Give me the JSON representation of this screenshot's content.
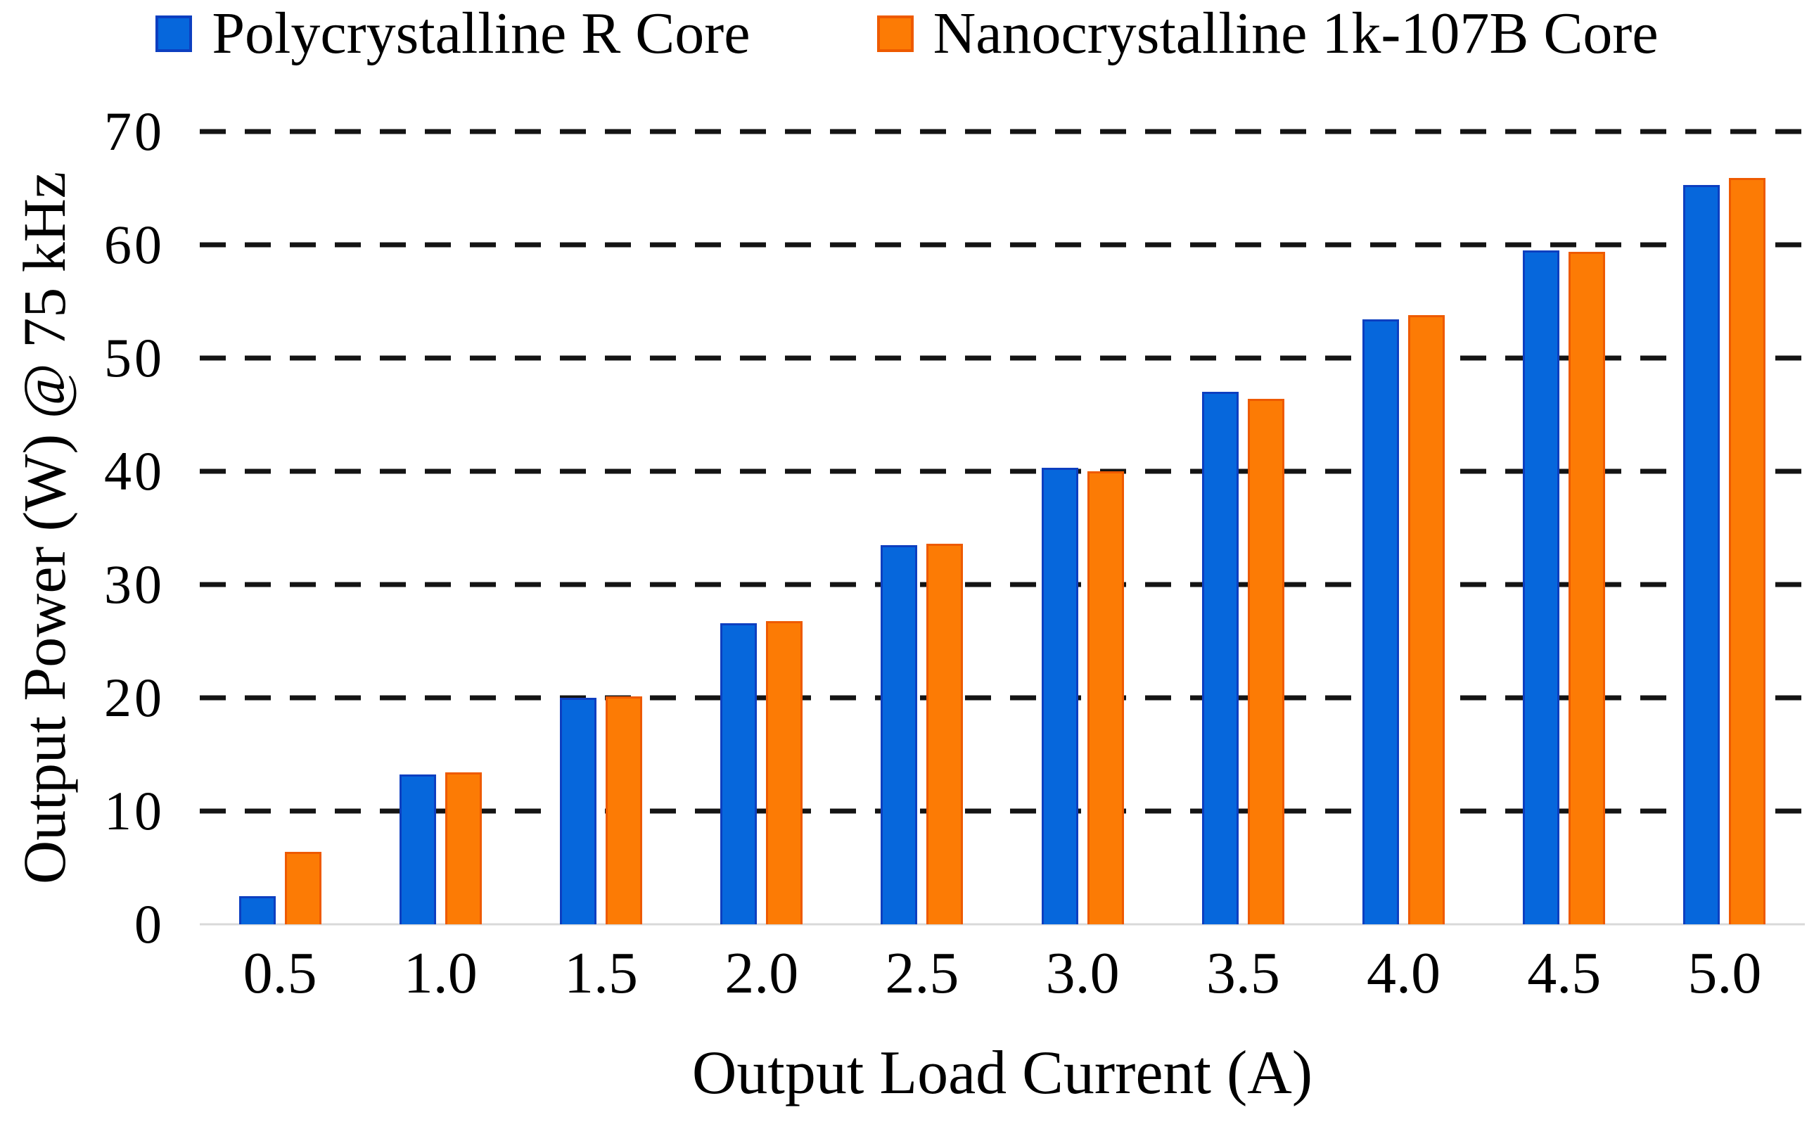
{
  "chart_data": {
    "type": "bar",
    "title": "",
    "xlabel": "Output Load Current (A)",
    "ylabel": "Output Power (W) @ 75 kHz",
    "categories": [
      "0.5",
      "1.0",
      "1.5",
      "2.0",
      "2.5",
      "3.0",
      "3.5",
      "4.0",
      "4.5",
      "5.0"
    ],
    "series": [
      {
        "name": "Polycrystalline R Core",
        "color": "#0667DC",
        "border_color": "#0D3FC0",
        "values": [
          2.5,
          13.2,
          20.0,
          26.6,
          33.5,
          40.3,
          47.0,
          53.4,
          59.5,
          65.3
        ]
      },
      {
        "name": "Nanocrystalline 1k-107B Core",
        "color": "#FC7B05",
        "border_color": "#EE5A00",
        "values": [
          6.4,
          13.4,
          20.1,
          26.8,
          33.6,
          40.0,
          46.4,
          53.8,
          59.4,
          65.9
        ]
      }
    ],
    "y_ticks": [
      0,
      10,
      20,
      30,
      40,
      50,
      60,
      70
    ],
    "ylim": [
      0,
      70
    ],
    "grid": "horizontal-dashed",
    "gridline_color": "#141414",
    "baseline_color": "#D9D9D9",
    "legend_position": "top"
  }
}
